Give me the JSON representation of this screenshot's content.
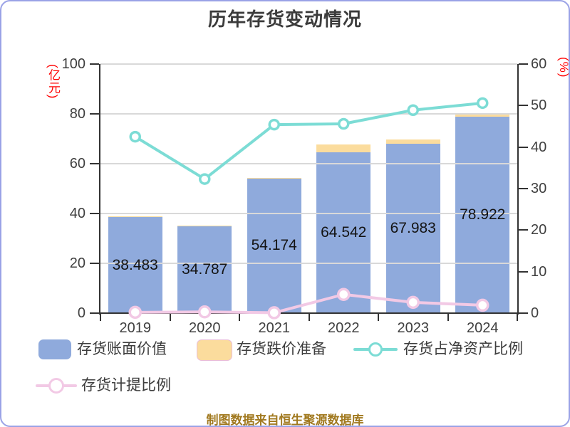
{
  "title": "历年存货变动情况",
  "footer": "制图数据来自恒生聚源数据库",
  "colors": {
    "bar_blue": "#8faadc",
    "bar_yellow": "#fbdc9d",
    "yellow_border": "#e9bcd8",
    "line_teal": "#7cdcd5",
    "line_pink": "#f2c9e5",
    "gridline": "#d9d9d9",
    "axis": "#333333",
    "tick_text": "#3f3f3f",
    "bar_label_text": "#141414",
    "axis_name_red": "#ff0000",
    "title_text": "#3b3b3b",
    "footer_text": "#a1791f",
    "frame_border": "#9aa2e6"
  },
  "left_axis": {
    "name": "(亿元)",
    "ticks": [
      0,
      20,
      40,
      60,
      80,
      100
    ],
    "max": 100
  },
  "right_axis": {
    "name": "(%)",
    "ticks": [
      0,
      10,
      20,
      30,
      40,
      50,
      60
    ],
    "max": 60
  },
  "chart_data": {
    "type": "bar",
    "title": "历年存货变动情况",
    "categories": [
      "2019",
      "2020",
      "2021",
      "2022",
      "2023",
      "2024"
    ],
    "ylim_left": [
      0,
      100
    ],
    "ylim_right": [
      0,
      60
    ],
    "grid": true,
    "legend_position": "bottom",
    "series": [
      {
        "name": "存货账面价值",
        "type": "bar",
        "stack": true,
        "axis": "left",
        "color": "#8faadc",
        "values": [
          38.483,
          34.787,
          54.174,
          64.542,
          67.983,
          78.922
        ],
        "data_labels": [
          "38.483",
          "34.787",
          "54.174",
          "64.542",
          "67.983",
          "78.922"
        ]
      },
      {
        "name": "存货跌价准备",
        "type": "bar",
        "stack": true,
        "axis": "left",
        "color": "#fbdc9d",
        "values": [
          0.3,
          0.3,
          0.2,
          3.2,
          1.8,
          1.4
        ]
      },
      {
        "name": "存货占净资产比例",
        "type": "line",
        "axis": "right",
        "color": "#7cdcd5",
        "values": [
          42.5,
          32.3,
          45.4,
          45.6,
          48.9,
          50.6
        ]
      },
      {
        "name": "存货计提比例",
        "type": "line",
        "axis": "right",
        "color": "#f2c9e5",
        "values": [
          0.2,
          0.3,
          0.1,
          4.5,
          2.6,
          1.9
        ]
      }
    ]
  }
}
